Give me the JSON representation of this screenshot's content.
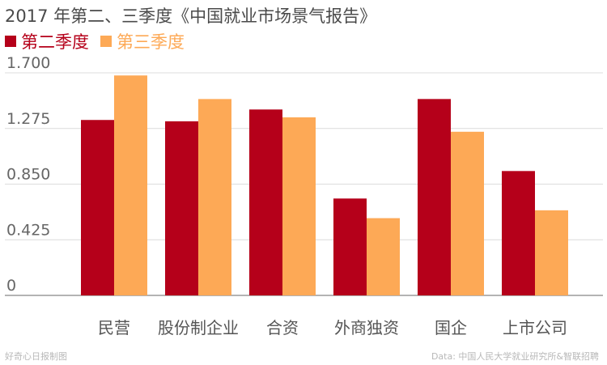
{
  "chart_data": {
    "type": "bar",
    "title": "2017 年第二、三季度《中国就业市场景气报告》",
    "categories": [
      "民营",
      "股份制企业",
      "合资",
      "外商独资",
      "国企",
      "上市公司"
    ],
    "series": [
      {
        "name": "第二季度",
        "color": "#b5001a",
        "values": [
          1.34,
          1.33,
          1.42,
          0.74,
          1.5,
          0.95
        ]
      },
      {
        "name": "第三季度",
        "color": "#fda956",
        "values": [
          1.68,
          1.5,
          1.36,
          0.59,
          1.25,
          0.65
        ]
      }
    ],
    "yticks": [
      "0",
      "0.425",
      "0.850",
      "1.275",
      "1.700"
    ],
    "ylim": [
      0,
      1.7
    ],
    "grid": true,
    "legend_position": "top-left"
  },
  "footer": {
    "left": "好奇心日报制图",
    "right": "Data: 中国人民大学就业研究所&智联招聘"
  }
}
